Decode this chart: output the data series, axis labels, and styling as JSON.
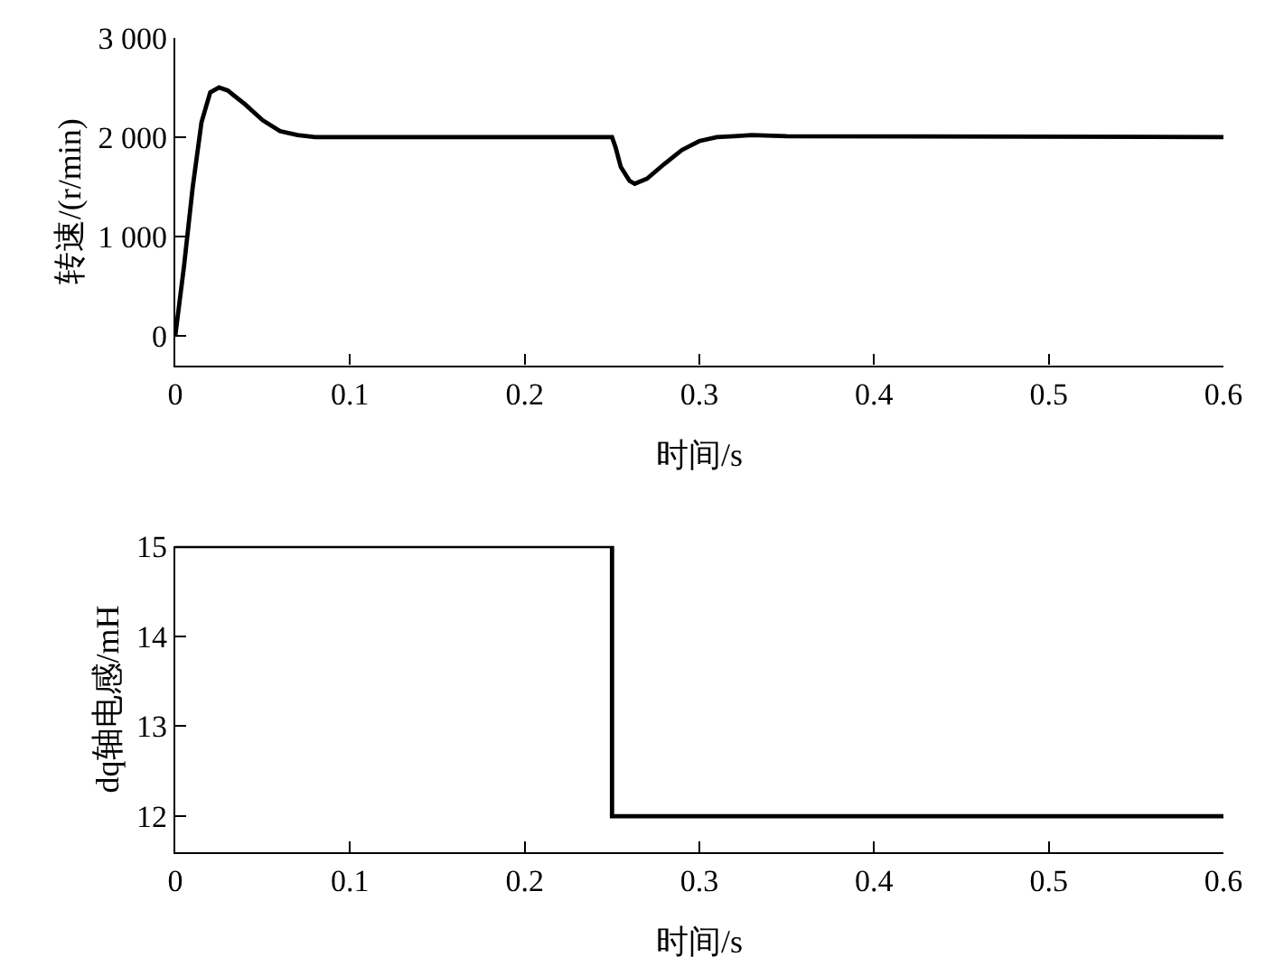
{
  "chart_data": [
    {
      "type": "line",
      "xlabel": "时间/s",
      "ylabel": "转速/(r/min)",
      "x": [
        0,
        0.005,
        0.01,
        0.015,
        0.02,
        0.025,
        0.03,
        0.04,
        0.05,
        0.06,
        0.07,
        0.08,
        0.1,
        0.25,
        0.252,
        0.255,
        0.26,
        0.263,
        0.27,
        0.28,
        0.29,
        0.3,
        0.31,
        0.32,
        0.33,
        0.35,
        0.6
      ],
      "series": [
        {
          "color": "#000000",
          "values": [
            0,
            700,
            1500,
            2150,
            2450,
            2500,
            2470,
            2330,
            2170,
            2060,
            2020,
            2000,
            2000,
            2000,
            1900,
            1700,
            1560,
            1530,
            1580,
            1730,
            1870,
            1960,
            2000,
            2010,
            2020,
            2010,
            2000
          ]
        }
      ],
      "xlim": [
        0,
        0.6
      ],
      "xticks": [
        0,
        0.1,
        0.2,
        0.3,
        0.4,
        0.5,
        0.6
      ],
      "ylim": [
        -300,
        3000
      ],
      "yticks": [
        0,
        {
          "value": 1000,
          "label": "1 000"
        },
        {
          "value": 2000,
          "label": "2 000"
        },
        {
          "value": 3000,
          "label": "3 000"
        }
      ]
    },
    {
      "type": "step",
      "xlabel": "时间/s",
      "ylabel": "dq轴电感/mH",
      "x": [
        0,
        0.25,
        0.6
      ],
      "series": [
        {
          "color": "#000000",
          "values": [
            15,
            12,
            12
          ]
        }
      ],
      "xlim": [
        0,
        0.6
      ],
      "xticks": [
        0,
        0.1,
        0.2,
        0.3,
        0.4,
        0.5,
        0.6
      ],
      "ylim": [
        11.6,
        15
      ],
      "yticks": [
        12,
        13,
        14,
        15
      ]
    }
  ]
}
